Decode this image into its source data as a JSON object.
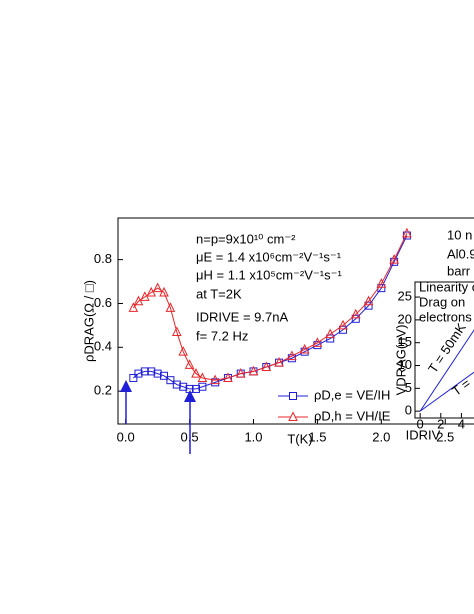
{
  "chart_data": [
    {
      "type": "line",
      "xlabel": "T(K)",
      "ylabel": "ρDRAG(Ω / □)",
      "x": [
        0.06,
        0.1,
        0.15,
        0.2,
        0.25,
        0.3,
        0.35,
        0.4,
        0.45,
        0.5,
        0.55,
        0.6,
        0.7,
        0.8,
        0.9,
        1.0,
        1.1,
        1.2,
        1.3,
        1.4,
        1.5,
        1.6,
        1.7,
        1.8,
        1.9,
        2.0,
        2.1,
        2.2
      ],
      "series": [
        {
          "name": "ρD,e = VE/IH",
          "color": "#1f1fd8",
          "marker": "square",
          "values": [
            0.26,
            0.28,
            0.29,
            0.29,
            0.28,
            0.27,
            0.25,
            0.23,
            0.22,
            0.21,
            0.21,
            0.22,
            0.24,
            0.26,
            0.28,
            0.29,
            0.31,
            0.33,
            0.35,
            0.38,
            0.41,
            0.44,
            0.48,
            0.53,
            0.59,
            0.67,
            0.79,
            0.91
          ]
        },
        {
          "name": "ρD,h = VH/IE",
          "color": "#e8262a",
          "marker": "triangle",
          "values": [
            0.58,
            0.61,
            0.63,
            0.65,
            0.67,
            0.65,
            0.58,
            0.47,
            0.38,
            0.32,
            0.28,
            0.26,
            0.25,
            0.26,
            0.28,
            0.29,
            0.31,
            0.33,
            0.36,
            0.39,
            0.42,
            0.46,
            0.5,
            0.55,
            0.61,
            0.69,
            0.8,
            0.92
          ]
        }
      ],
      "xlim": [
        -0.06,
        2.85
      ],
      "ylim": [
        0.05,
        0.99
      ],
      "xticks": [
        {
          "value": 0,
          "label": "0.0"
        },
        0.5,
        {
          "value": 1,
          "label": "1.0"
        },
        1.5,
        {
          "value": 2,
          "label": "2.0"
        },
        2.5
      ],
      "yticks": [
        0.2,
        0.4,
        0.6,
        0.8
      ],
      "grid": false,
      "legend": "lower right",
      "annotations": [
        {
          "text": "n=p=9x10¹⁰ cm⁻²",
          "color": "#000000"
        },
        {
          "text": "μE = 1.4 x10⁶cm⁻²V⁻¹s⁻¹",
          "color": "#1f1fd8"
        },
        {
          "text": "μH = 1.1 x10⁵cm⁻²V⁻¹s⁻¹",
          "color": "#e8262a"
        },
        {
          "text": "at T=2K",
          "color": "#000000"
        },
        {
          "text": "IDRIVE = 9.7nA",
          "color": "#000000"
        },
        {
          "text": "f= 7.2 Hz",
          "color": "#000000"
        },
        {
          "text": "10 n",
          "color": "#000000"
        },
        {
          "text": "Al0.9",
          "color": "#000000"
        },
        {
          "text": "barr",
          "color": "#000000"
        }
      ]
    },
    {
      "type": "line",
      "xlabel": "IDRIV",
      "ylabel": "VDRAG(nV)",
      "x": [
        0,
        6
      ],
      "series": [
        {
          "name": "T = 50mK",
          "color": "#1f1fd8",
          "values": [
            0,
            20.4
          ]
        },
        {
          "name": "T =",
          "color": "#1f1fd8",
          "values": [
            0,
            9.8
          ]
        }
      ],
      "xlim": [
        -0.5,
        6
      ],
      "ylim": [
        -1.5,
        28.3
      ],
      "xticks": [
        0,
        2,
        4
      ],
      "yticks": [
        0,
        5,
        10,
        15,
        20,
        25
      ],
      "annotations": [
        {
          "text": "Linearity o",
          "color": "#1f1fd8"
        },
        {
          "text": "Drag on",
          "color": "#1f1fd8"
        },
        {
          "text": "electrons",
          "color": "#1f1fd8"
        }
      ]
    }
  ]
}
